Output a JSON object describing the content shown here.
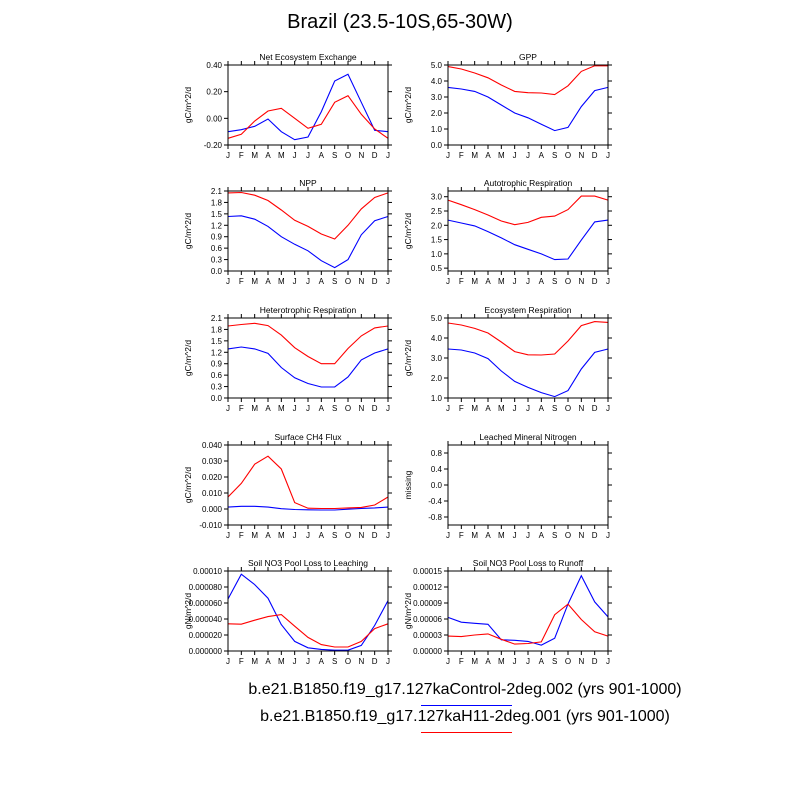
{
  "title": "Brazil (23.5-10S,65-30W)",
  "colors": {
    "control": "#0000ff",
    "h11": "#ff0000"
  },
  "legend": [
    {
      "label": "b.e21.B1850.f19_g17.127kaControl-2deg.002 (yrs 901-1000)",
      "color": "#0000ff"
    },
    {
      "label": "b.e21.B1850.f19_g17.127kaH11-2deg.001 (yrs 901-1000)",
      "color": "#ff0000"
    }
  ],
  "chart_data": [
    {
      "type": "line",
      "title": "Net Ecosystem Exchange",
      "ylabel": "gC/m^2/d",
      "ylim": [
        -0.2,
        0.4
      ],
      "yticks": [
        "-0.20",
        "0.00",
        "0.20",
        "0.40"
      ],
      "ytick_values": [
        -0.2,
        0,
        0.2,
        0.4
      ],
      "categories": [
        "J",
        "F",
        "M",
        "A",
        "M",
        "J",
        "J",
        "A",
        "S",
        "O",
        "N",
        "D",
        "J"
      ],
      "series": [
        {
          "name": "Control",
          "color": "#0000ff",
          "values": [
            -0.1,
            -0.085,
            -0.06,
            -0.005,
            -0.1,
            -0.16,
            -0.14,
            0.05,
            0.28,
            0.33,
            0.12,
            -0.09,
            -0.1
          ]
        },
        {
          "name": "H11",
          "color": "#ff0000",
          "values": [
            -0.15,
            -0.12,
            -0.02,
            0.055,
            0.075,
            0.0,
            -0.075,
            -0.045,
            0.12,
            0.17,
            0.03,
            -0.08,
            -0.15
          ]
        }
      ]
    },
    {
      "type": "line",
      "title": "GPP",
      "ylabel": "gC/m^2/d",
      "ylim": [
        0,
        5
      ],
      "yticks": [
        "0.0",
        "1.0",
        "2.0",
        "3.0",
        "4.0",
        "5.0"
      ],
      "ytick_values": [
        0,
        1,
        2,
        3,
        4,
        5
      ],
      "categories": [
        "J",
        "F",
        "M",
        "A",
        "M",
        "J",
        "J",
        "A",
        "S",
        "O",
        "N",
        "D",
        "J"
      ],
      "series": [
        {
          "name": "Control",
          "color": "#0000ff",
          "values": [
            3.6,
            3.5,
            3.35,
            3.0,
            2.5,
            2.0,
            1.7,
            1.3,
            0.9,
            1.1,
            2.4,
            3.4,
            3.6
          ]
        },
        {
          "name": "H11",
          "color": "#ff0000",
          "values": [
            4.9,
            4.75,
            4.5,
            4.2,
            3.75,
            3.35,
            3.27,
            3.25,
            3.15,
            3.7,
            4.6,
            4.95,
            4.95
          ]
        }
      ]
    },
    {
      "type": "line",
      "title": "NPP",
      "ylabel": "gC/m^2/d",
      "ylim": [
        0,
        2.1
      ],
      "yticks": [
        "0.0",
        "0.3",
        "0.6",
        "0.9",
        "1.2",
        "1.5",
        "1.8",
        "2.1"
      ],
      "ytick_values": [
        0,
        0.3,
        0.6,
        0.9,
        1.2,
        1.5,
        1.8,
        2.1
      ],
      "categories": [
        "J",
        "F",
        "M",
        "A",
        "M",
        "J",
        "J",
        "A",
        "S",
        "O",
        "N",
        "D",
        "J"
      ],
      "series": [
        {
          "name": "Control",
          "color": "#0000ff",
          "values": [
            1.43,
            1.45,
            1.36,
            1.17,
            0.9,
            0.7,
            0.53,
            0.27,
            0.09,
            0.3,
            0.95,
            1.32,
            1.43
          ]
        },
        {
          "name": "H11",
          "color": "#ff0000",
          "values": [
            2.05,
            2.06,
            1.99,
            1.85,
            1.6,
            1.33,
            1.17,
            0.97,
            0.84,
            1.2,
            1.63,
            1.93,
            2.05
          ]
        }
      ]
    },
    {
      "type": "line",
      "title": "Autotrophic Respiration",
      "ylabel": "gC/m^2/d",
      "ylim": [
        0.4,
        3.2
      ],
      "yticks": [
        "0.5",
        "1.0",
        "1.5",
        "2.0",
        "2.5",
        "3.0"
      ],
      "ytick_values": [
        0.5,
        1,
        1.5,
        2,
        2.5,
        3
      ],
      "categories": [
        "J",
        "F",
        "M",
        "A",
        "M",
        "J",
        "J",
        "A",
        "S",
        "O",
        "N",
        "D",
        "J"
      ],
      "series": [
        {
          "name": "Control",
          "color": "#0000ff",
          "values": [
            2.18,
            2.08,
            1.98,
            1.78,
            1.56,
            1.32,
            1.16,
            1.0,
            0.8,
            0.82,
            1.48,
            2.12,
            2.18
          ]
        },
        {
          "name": "H11",
          "color": "#ff0000",
          "values": [
            2.88,
            2.72,
            2.55,
            2.36,
            2.15,
            2.02,
            2.1,
            2.28,
            2.32,
            2.55,
            3.02,
            3.02,
            2.88
          ]
        }
      ]
    },
    {
      "type": "line",
      "title": "Heterotrophic Respiration",
      "ylabel": "gC/m^2/d",
      "ylim": [
        0,
        2.1
      ],
      "yticks": [
        "0.0",
        "0.3",
        "0.6",
        "0.9",
        "1.2",
        "1.5",
        "1.8",
        "2.1"
      ],
      "ytick_values": [
        0,
        0.3,
        0.6,
        0.9,
        1.2,
        1.5,
        1.8,
        2.1
      ],
      "categories": [
        "J",
        "F",
        "M",
        "A",
        "M",
        "J",
        "J",
        "A",
        "S",
        "O",
        "N",
        "D",
        "J"
      ],
      "series": [
        {
          "name": "Control",
          "color": "#0000ff",
          "values": [
            1.29,
            1.34,
            1.29,
            1.17,
            0.8,
            0.53,
            0.38,
            0.29,
            0.29,
            0.55,
            1.0,
            1.18,
            1.29
          ]
        },
        {
          "name": "H11",
          "color": "#ff0000",
          "values": [
            1.89,
            1.93,
            1.96,
            1.9,
            1.65,
            1.32,
            1.09,
            0.9,
            0.9,
            1.3,
            1.63,
            1.84,
            1.89
          ]
        }
      ]
    },
    {
      "type": "line",
      "title": "Ecosystem Respiration",
      "ylabel": "gC/m^2/d",
      "ylim": [
        1,
        5
      ],
      "yticks": [
        "1.0",
        "2.0",
        "3.0",
        "4.0",
        "5.0"
      ],
      "ytick_values": [
        1,
        2,
        3,
        4,
        5
      ],
      "categories": [
        "J",
        "F",
        "M",
        "A",
        "M",
        "J",
        "J",
        "A",
        "S",
        "O",
        "N",
        "D",
        "J"
      ],
      "series": [
        {
          "name": "Control",
          "color": "#0000ff",
          "values": [
            3.45,
            3.4,
            3.25,
            2.97,
            2.35,
            1.83,
            1.53,
            1.27,
            1.07,
            1.37,
            2.45,
            3.28,
            3.45
          ]
        },
        {
          "name": "H11",
          "color": "#ff0000",
          "values": [
            4.75,
            4.65,
            4.48,
            4.25,
            3.8,
            3.32,
            3.16,
            3.15,
            3.2,
            3.85,
            4.62,
            4.82,
            4.78
          ]
        }
      ]
    },
    {
      "type": "line",
      "title": "Surface CH4 Flux",
      "ylabel": "gC/m^2/d",
      "ylim": [
        -0.01,
        0.04
      ],
      "yticks": [
        "-0.010",
        "0.000",
        "0.010",
        "0.020",
        "0.030",
        "0.040"
      ],
      "ytick_values": [
        -0.01,
        0,
        0.01,
        0.02,
        0.03,
        0.04
      ],
      "categories": [
        "J",
        "F",
        "M",
        "A",
        "M",
        "J",
        "J",
        "A",
        "S",
        "O",
        "N",
        "D",
        "J"
      ],
      "series": [
        {
          "name": "Control",
          "color": "#0000ff",
          "values": [
            0.0012,
            0.0017,
            0.0017,
            0.0012,
            0.0002,
            -0.0003,
            -0.0005,
            -0.0006,
            -0.0006,
            -0.0001,
            0.0004,
            0.0007,
            0.0012
          ]
        },
        {
          "name": "H11",
          "color": "#ff0000",
          "values": [
            0.0075,
            0.016,
            0.028,
            0.033,
            0.025,
            0.004,
            0.0005,
            0.0003,
            0.0003,
            0.0007,
            0.001,
            0.0025,
            0.0075
          ]
        }
      ]
    },
    {
      "type": "line",
      "title": "Leached Mineral Nitrogen",
      "ylabel": "missing",
      "ylim": [
        -1,
        1
      ],
      "yticks": [
        "-0.8",
        "-0.4",
        "0.0",
        "0.4",
        "0.8"
      ],
      "ytick_values": [
        -0.8,
        -0.4,
        0,
        0.4,
        0.8
      ],
      "categories": [
        "J",
        "F",
        "M",
        "A",
        "M",
        "J",
        "J",
        "A",
        "S",
        "O",
        "N",
        "D",
        "J"
      ],
      "series": []
    },
    {
      "type": "line",
      "title": "Soil NO3 Pool Loss to Leaching",
      "ylabel": "gN/m^2/d",
      "ylim": [
        0,
        0.0001
      ],
      "yticks": [
        "0.000000",
        "0.000020",
        "0.000040",
        "0.000060",
        "0.000080",
        "0.00010"
      ],
      "ytick_values": [
        0,
        2e-05,
        4e-05,
        6e-05,
        8e-05,
        0.0001
      ],
      "categories": [
        "J",
        "F",
        "M",
        "A",
        "M",
        "J",
        "J",
        "A",
        "S",
        "O",
        "N",
        "D",
        "J"
      ],
      "series": [
        {
          "name": "Control",
          "color": "#0000ff",
          "values": [
            6.5e-05,
            9.6e-05,
            8.3e-05,
            6.6e-05,
            3.3e-05,
            1.2e-05,
            4e-06,
            2e-06,
            1e-06,
            1e-06,
            7e-06,
            3.2e-05,
            6.3e-05
          ]
        },
        {
          "name": "H11",
          "color": "#ff0000",
          "values": [
            3.4e-05,
            3.35e-05,
            3.85e-05,
            4.3e-05,
            4.55e-05,
            3.1e-05,
            1.7e-05,
            8e-06,
            5e-06,
            5e-06,
            1.2e-05,
            2.8e-05,
            3.4e-05
          ]
        }
      ]
    },
    {
      "type": "line",
      "title": "Soil NO3 Pool Loss to Runoff",
      "ylabel": "gN/m^2/d",
      "ylim": [
        0,
        0.00015
      ],
      "yticks": [
        "0.00000",
        "0.00003",
        "0.00006",
        "0.00009",
        "0.00012",
        "0.00015"
      ],
      "ytick_values": [
        0,
        3e-05,
        6e-05,
        9e-05,
        0.00012,
        0.00015
      ],
      "categories": [
        "J",
        "F",
        "M",
        "A",
        "M",
        "J",
        "J",
        "A",
        "S",
        "O",
        "N",
        "D",
        "J"
      ],
      "series": [
        {
          "name": "Control",
          "color": "#0000ff",
          "values": [
            6.3e-05,
            5.4e-05,
            5.2e-05,
            5e-05,
            2.1e-05,
            2e-05,
            1.8e-05,
            1.1e-05,
            2.4e-05,
            8.8e-05,
            0.000141,
            9.2e-05,
            6.4e-05
          ]
        },
        {
          "name": "H11",
          "color": "#ff0000",
          "values": [
            2.8e-05,
            2.7e-05,
            3e-05,
            3.2e-05,
            2.2e-05,
            1.3e-05,
            1.4e-05,
            1.7e-05,
            6.8e-05,
            8.8e-05,
            5.9e-05,
            3.6e-05,
            2.8e-05
          ]
        }
      ]
    }
  ]
}
